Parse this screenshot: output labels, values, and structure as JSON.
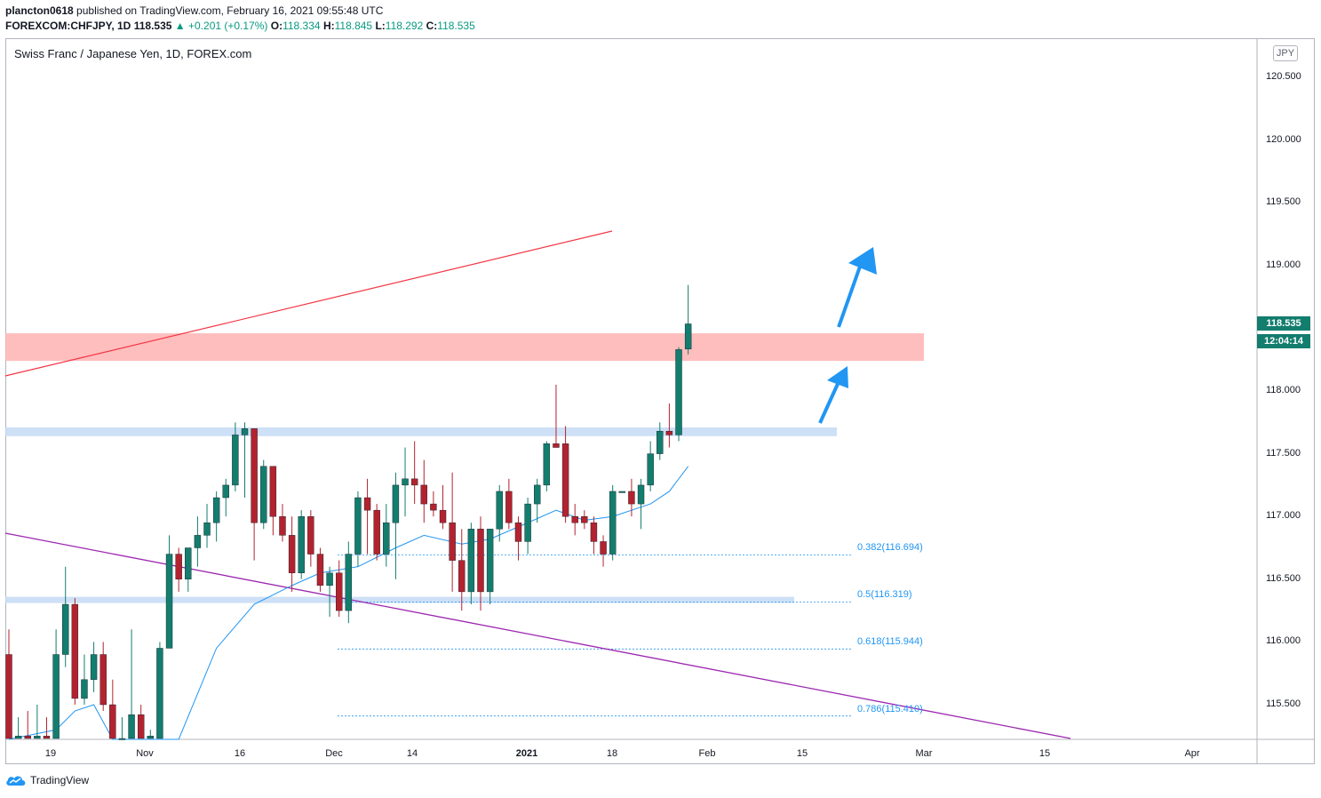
{
  "header": {
    "author": "plancton0618",
    "published": "published on TradingView.com, February 16, 2021 09:55:48 UTC",
    "symbol": "FOREXCOM:CHFJPY, 1D",
    "price": "118.535",
    "change": "+0.201 (+0.17%)",
    "o_label": "O:",
    "o": "118.334",
    "h_label": "H:",
    "h": "118.845",
    "l_label": "L:",
    "l": "118.292",
    "c_label": "C:",
    "c": "118.535"
  },
  "pane_title": "Swiss Franc / Japanese Yen, 1D, FOREX.com",
  "currency_badge": "JPY",
  "last_price_tag": "118.535",
  "countdown_tag": "12:04:14",
  "y_axis": [
    "120.500",
    "120.000",
    "119.500",
    "119.000",
    "118.000",
    "117.500",
    "117.000",
    "116.500",
    "116.000",
    "115.500"
  ],
  "x_axis": [
    "19",
    "Nov",
    "16",
    "Dec",
    "14",
    "2021",
    "18",
    "Feb",
    "15",
    "Mar",
    "15",
    "Apr"
  ],
  "fib_levels": [
    {
      "label": "0.382(116.694)",
      "value": 116.694
    },
    {
      "label": "0.5(116.319)",
      "value": 116.319
    },
    {
      "label": "0.618(115.944)",
      "value": 115.944
    },
    {
      "label": "0.786(115.410)",
      "value": 115.41
    }
  ],
  "zones": [
    {
      "name": "resistance",
      "from": 118.24,
      "to": 118.46,
      "color": "#ffb3b3"
    },
    {
      "name": "support-upper",
      "from": 117.64,
      "to": 117.71,
      "color": "#c6daf5"
    },
    {
      "name": "support-lower",
      "from": 116.31,
      "to": 116.36,
      "color": "#c6daf5"
    }
  ],
  "colors": {
    "up": "#137d6e",
    "down": "#b2232f",
    "ma": "#2196f3",
    "red_line": "#f23645",
    "purple_line": "#9c27b0",
    "arrow": "#2196f3"
  },
  "chart_data": {
    "type": "candlestick",
    "title": "Swiss Franc / Japanese Yen, 1D, FOREX.com",
    "ylim": [
      115.2,
      121.0
    ],
    "candles": [
      {
        "o": 115.9,
        "h": 116.1,
        "l": 115.2,
        "c": 115.2
      },
      {
        "o": 115.2,
        "h": 115.4,
        "l": 115.2,
        "c": 115.25
      },
      {
        "o": 115.25,
        "h": 115.45,
        "l": 115.2,
        "c": 115.2
      },
      {
        "o": 115.2,
        "h": 115.5,
        "l": 115.2,
        "c": 115.25
      },
      {
        "o": 115.25,
        "h": 115.4,
        "l": 115.2,
        "c": 115.2
      },
      {
        "o": 115.2,
        "h": 116.1,
        "l": 115.2,
        "c": 115.9
      },
      {
        "o": 115.9,
        "h": 116.6,
        "l": 115.8,
        "c": 116.3
      },
      {
        "o": 116.3,
        "h": 116.35,
        "l": 115.5,
        "c": 115.55
      },
      {
        "o": 115.55,
        "h": 115.9,
        "l": 115.5,
        "c": 115.7
      },
      {
        "o": 115.7,
        "h": 116.0,
        "l": 115.6,
        "c": 115.9
      },
      {
        "o": 115.9,
        "h": 116.0,
        "l": 115.45,
        "c": 115.5
      },
      {
        "o": 115.5,
        "h": 115.7,
        "l": 115.2,
        "c": 115.2
      },
      {
        "o": 115.2,
        "h": 115.4,
        "l": 115.2,
        "c": 115.2
      },
      {
        "o": 115.2,
        "h": 116.1,
        "l": 115.2,
        "c": 115.42
      },
      {
        "o": 115.42,
        "h": 115.5,
        "l": 115.2,
        "c": 115.2
      },
      {
        "o": 115.2,
        "h": 115.3,
        "l": 115.2,
        "c": 115.25
      },
      {
        "o": 115.2,
        "h": 116.0,
        "l": 115.2,
        "c": 115.95
      },
      {
        "o": 115.95,
        "h": 116.85,
        "l": 115.95,
        "c": 116.7
      },
      {
        "o": 116.7,
        "h": 116.75,
        "l": 116.4,
        "c": 116.5
      },
      {
        "o": 116.5,
        "h": 116.75,
        "l": 116.4,
        "c": 116.75
      },
      {
        "o": 116.75,
        "h": 117.0,
        "l": 116.6,
        "c": 116.85
      },
      {
        "o": 116.85,
        "h": 117.1,
        "l": 116.75,
        "c": 116.95
      },
      {
        "o": 116.95,
        "h": 117.2,
        "l": 116.8,
        "c": 117.15
      },
      {
        "o": 117.15,
        "h": 117.3,
        "l": 117.0,
        "c": 117.25
      },
      {
        "o": 117.25,
        "h": 117.75,
        "l": 117.2,
        "c": 117.65
      },
      {
        "o": 117.65,
        "h": 117.75,
        "l": 117.15,
        "c": 117.7
      },
      {
        "o": 117.7,
        "h": 117.7,
        "l": 116.65,
        "c": 116.95
      },
      {
        "o": 116.95,
        "h": 117.45,
        "l": 116.9,
        "c": 117.4
      },
      {
        "o": 117.4,
        "h": 117.4,
        "l": 116.85,
        "c": 117.0
      },
      {
        "o": 117.0,
        "h": 117.1,
        "l": 116.8,
        "c": 116.85
      },
      {
        "o": 116.85,
        "h": 117.0,
        "l": 116.4,
        "c": 116.55
      },
      {
        "o": 116.55,
        "h": 117.05,
        "l": 116.5,
        "c": 117.0
      },
      {
        "o": 117.0,
        "h": 117.05,
        "l": 116.6,
        "c": 116.7
      },
      {
        "o": 116.7,
        "h": 116.75,
        "l": 116.4,
        "c": 116.45
      },
      {
        "o": 116.45,
        "h": 116.6,
        "l": 116.2,
        "c": 116.55
      },
      {
        "o": 116.55,
        "h": 116.65,
        "l": 116.2,
        "c": 116.25
      },
      {
        "o": 116.25,
        "h": 116.8,
        "l": 116.15,
        "c": 116.7
      },
      {
        "o": 116.7,
        "h": 117.2,
        "l": 116.6,
        "c": 117.15
      },
      {
        "o": 117.15,
        "h": 117.3,
        "l": 116.7,
        "c": 117.05
      },
      {
        "o": 117.05,
        "h": 117.1,
        "l": 116.65,
        "c": 116.7
      },
      {
        "o": 116.7,
        "h": 117.1,
        "l": 116.6,
        "c": 116.95
      },
      {
        "o": 116.95,
        "h": 117.35,
        "l": 116.5,
        "c": 117.25
      },
      {
        "o": 117.25,
        "h": 117.55,
        "l": 117.0,
        "c": 117.3
      },
      {
        "o": 117.3,
        "h": 117.6,
        "l": 117.1,
        "c": 117.25
      },
      {
        "o": 117.25,
        "h": 117.45,
        "l": 116.95,
        "c": 117.1
      },
      {
        "o": 117.1,
        "h": 117.2,
        "l": 117.0,
        "c": 117.05
      },
      {
        "o": 117.05,
        "h": 117.25,
        "l": 116.9,
        "c": 116.95
      },
      {
        "o": 116.95,
        "h": 117.35,
        "l": 116.4,
        "c": 116.65
      },
      {
        "o": 116.65,
        "h": 116.9,
        "l": 116.25,
        "c": 116.4
      },
      {
        "o": 116.4,
        "h": 116.95,
        "l": 116.3,
        "c": 116.9
      },
      {
        "o": 116.9,
        "h": 117.0,
        "l": 116.25,
        "c": 116.4
      },
      {
        "o": 116.4,
        "h": 116.9,
        "l": 116.3,
        "c": 116.9
      },
      {
        "o": 116.9,
        "h": 117.25,
        "l": 116.8,
        "c": 117.2
      },
      {
        "o": 117.2,
        "h": 117.3,
        "l": 116.9,
        "c": 116.95
      },
      {
        "o": 116.95,
        "h": 117.0,
        "l": 116.65,
        "c": 116.8
      },
      {
        "o": 116.8,
        "h": 117.15,
        "l": 116.7,
        "c": 117.1
      },
      {
        "o": 117.1,
        "h": 117.3,
        "l": 116.95,
        "c": 117.25
      },
      {
        "o": 117.25,
        "h": 117.6,
        "l": 117.2,
        "c": 117.58
      },
      {
        "o": 117.58,
        "h": 118.05,
        "l": 117.55,
        "c": 117.55
      },
      {
        "o": 117.58,
        "h": 117.72,
        "l": 116.95,
        "c": 117.0
      },
      {
        "o": 117.0,
        "h": 117.1,
        "l": 116.85,
        "c": 116.95
      },
      {
        "o": 117.0,
        "h": 117.05,
        "l": 116.9,
        "c": 116.95
      },
      {
        "o": 116.95,
        "h": 117.0,
        "l": 116.7,
        "c": 116.8
      },
      {
        "o": 116.8,
        "h": 116.85,
        "l": 116.6,
        "c": 116.7
      },
      {
        "o": 116.7,
        "h": 117.25,
        "l": 116.65,
        "c": 117.2
      },
      {
        "o": 117.2,
        "h": 117.2,
        "l": 117.2,
        "c": 117.2
      },
      {
        "o": 117.2,
        "h": 117.3,
        "l": 117.0,
        "c": 117.1
      },
      {
        "o": 117.1,
        "h": 117.3,
        "l": 116.9,
        "c": 117.25
      },
      {
        "o": 117.25,
        "h": 117.6,
        "l": 117.2,
        "c": 117.5
      },
      {
        "o": 117.5,
        "h": 117.75,
        "l": 117.45,
        "c": 117.68
      },
      {
        "o": 117.68,
        "h": 117.9,
        "l": 117.55,
        "c": 117.65
      },
      {
        "o": 117.65,
        "h": 118.35,
        "l": 117.6,
        "c": 118.33
      },
      {
        "o": 118.334,
        "h": 118.845,
        "l": 118.292,
        "c": 118.535
      }
    ],
    "moving_average": [
      {
        "i": 0,
        "v": 114.9
      },
      {
        "i": 5,
        "v": 115.3
      },
      {
        "i": 7,
        "v": 115.45
      },
      {
        "i": 9,
        "v": 115.5
      },
      {
        "i": 11,
        "v": 115.2
      },
      {
        "i": 18,
        "v": 115.2
      },
      {
        "i": 22,
        "v": 115.95
      },
      {
        "i": 26,
        "v": 116.3
      },
      {
        "i": 30,
        "v": 116.45
      },
      {
        "i": 33,
        "v": 116.55
      },
      {
        "i": 37,
        "v": 116.6
      },
      {
        "i": 41,
        "v": 116.75
      },
      {
        "i": 44,
        "v": 116.85
      },
      {
        "i": 48,
        "v": 116.78
      },
      {
        "i": 51,
        "v": 116.82
      },
      {
        "i": 55,
        "v": 116.95
      },
      {
        "i": 58,
        "v": 117.05
      },
      {
        "i": 61,
        "v": 116.97
      },
      {
        "i": 64,
        "v": 117.0
      },
      {
        "i": 68,
        "v": 117.1
      },
      {
        "i": 70,
        "v": 117.2
      },
      {
        "i": 72,
        "v": 117.4
      }
    ]
  }
}
